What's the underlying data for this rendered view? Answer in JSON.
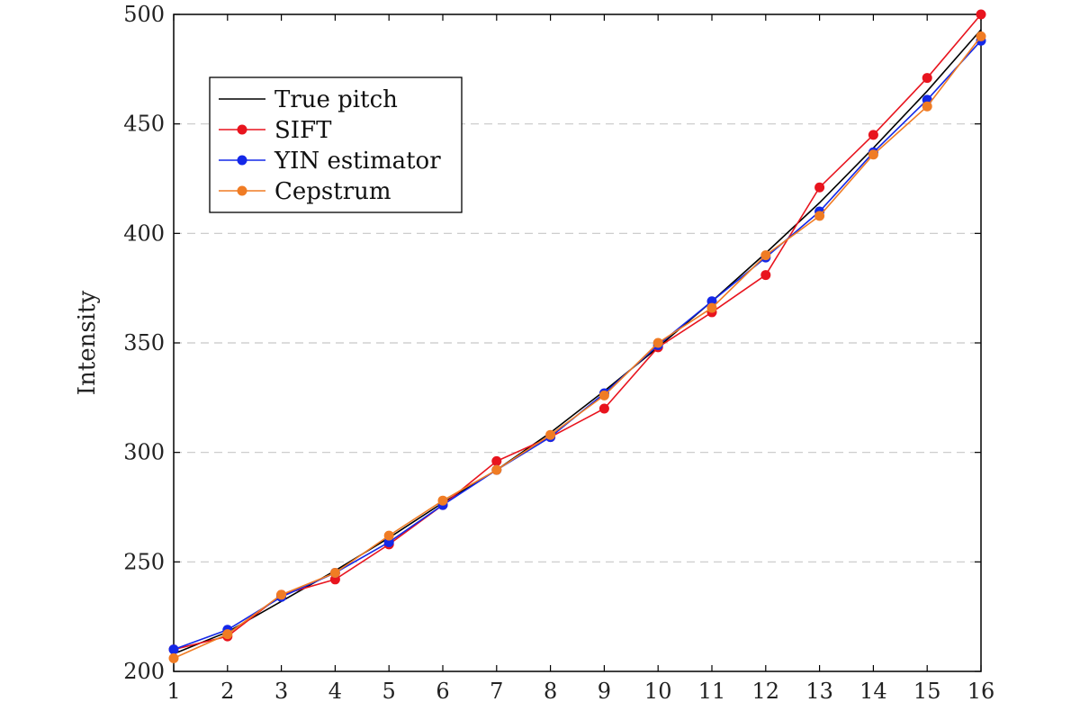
{
  "chart_data": {
    "type": "line",
    "title": "",
    "xlabel": "",
    "ylabel": "Intensity",
    "x": [
      1,
      2,
      3,
      4,
      5,
      6,
      7,
      8,
      9,
      10,
      11,
      12,
      13,
      14,
      15,
      16
    ],
    "xticks": [
      "1",
      "2",
      "3",
      "4",
      "5",
      "6",
      "7",
      "8",
      "9",
      "10",
      "11",
      "12",
      "13",
      "14",
      "15",
      "16"
    ],
    "xlim": [
      1,
      16
    ],
    "ylim": [
      200,
      500
    ],
    "yticks": [
      "200",
      "250",
      "300",
      "350",
      "400",
      "450",
      "500"
    ],
    "grid": "horizontal dashed",
    "legend_position": "top-left",
    "series": [
      {
        "name": "True pitch",
        "color": "#000000",
        "marker": false,
        "values": [
          208,
          218,
          232,
          246,
          261,
          277,
          292,
          309,
          328,
          348,
          369,
          391,
          414,
          439,
          465,
          493
        ]
      },
      {
        "name": "SIFT",
        "color": "#e8141e",
        "marker": true,
        "values": [
          210,
          216,
          235,
          242,
          258,
          276,
          296,
          307,
          320,
          348,
          364,
          381,
          421,
          445,
          471,
          500
        ]
      },
      {
        "name": "YIN estimator",
        "color": "#1428e8",
        "marker": true,
        "values": [
          210,
          219,
          234,
          245,
          259,
          276,
          292,
          307,
          327,
          349,
          369,
          389,
          410,
          437,
          461,
          488
        ]
      },
      {
        "name": "Cepstrum",
        "color": "#f07c24",
        "marker": true,
        "values": [
          206,
          217,
          235,
          245,
          262,
          278,
          292,
          308,
          326,
          350,
          366,
          390,
          408,
          436,
          458,
          490
        ]
      }
    ]
  }
}
